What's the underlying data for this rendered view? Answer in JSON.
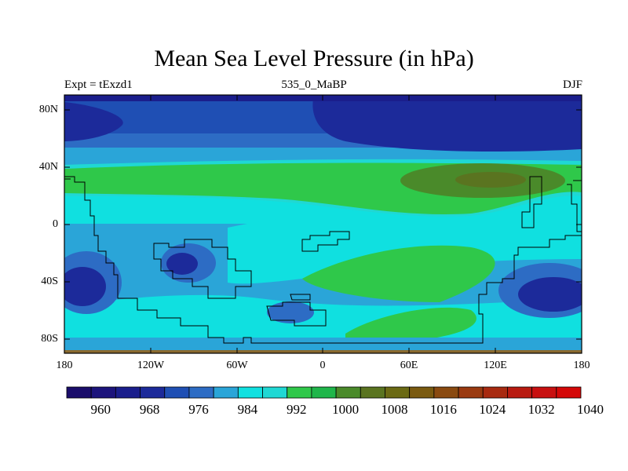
{
  "title": "Mean Sea Level Pressure (in hPa)",
  "subtitle_left": "Expt = tExzd1",
  "subtitle_center": "535_0_MaBP",
  "subtitle_right": "DJF",
  "y_labels": [
    "80N",
    "40N",
    "0",
    "40S",
    "80S"
  ],
  "x_labels": [
    "180",
    "120W",
    "60W",
    "0",
    "60E",
    "120E",
    "180"
  ],
  "colorbar": {
    "tick_labels": [
      "960",
      "968",
      "976",
      "984",
      "992",
      "1000",
      "1008",
      "1016",
      "1024",
      "1032",
      "1040"
    ],
    "colors": [
      "#1a0d6b",
      "#1c147c",
      "#1a1e8c",
      "#1c2a9a",
      "#1f4fb4",
      "#2d6cc4",
      "#2aa5d8",
      "#10e0e0",
      "#1fd8d4",
      "#2fc84a",
      "#1fb64a",
      "#4a8a2a",
      "#5a7420",
      "#6b6a14",
      "#7a5a10",
      "#8a4a10",
      "#9a3a10",
      "#a82a10",
      "#b81a10",
      "#c81010",
      "#d40808"
    ]
  },
  "chart_data": {
    "type": "heatmap",
    "title": "Mean Sea Level Pressure (in hPa)",
    "variable": "Mean Sea Level Pressure",
    "units": "hPa",
    "experiment": "tExzd1",
    "period": "535_0_MaBP",
    "season": "DJF",
    "xlim": [
      -180,
      180
    ],
    "ylim": [
      -90,
      90
    ],
    "x_ticks": [
      -180,
      -120,
      -60,
      0,
      60,
      120,
      180
    ],
    "y_ticks": [
      80,
      40,
      0,
      -40,
      -80
    ],
    "levels": [
      960,
      968,
      976,
      984,
      992,
      1000,
      1008,
      1016,
      1024,
      1032,
      1040
    ]
  }
}
